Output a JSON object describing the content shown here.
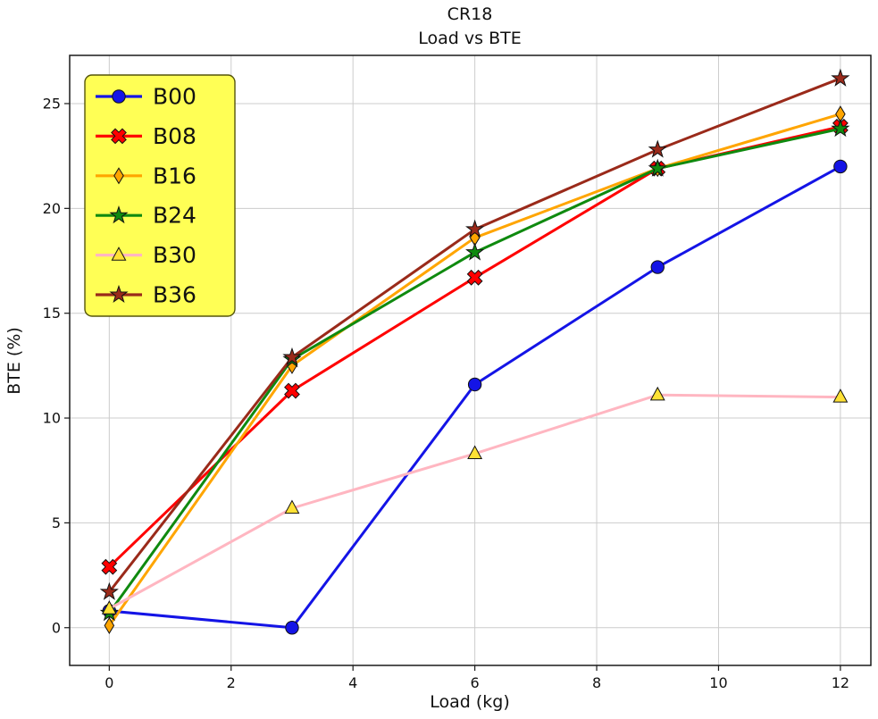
{
  "chart_data": {
    "type": "line",
    "title": "CR18",
    "subtitle": "Load vs BTE",
    "xlabel": "Load (kg)",
    "ylabel": "BTE (%)",
    "x": [
      0,
      3,
      6,
      9,
      12
    ],
    "x_ticks": [
      0,
      2,
      4,
      6,
      8,
      10,
      12
    ],
    "y_ticks": [
      0,
      5,
      10,
      15,
      20,
      25
    ],
    "xlim": [
      -0.65,
      12.5
    ],
    "ylim": [
      -1.8,
      27.3
    ],
    "grid": true,
    "grid_color": "#cccccc",
    "legend_position": "upper-left",
    "legend_bg": "#ffff55",
    "legend_border": "#55550a",
    "series": [
      {
        "name": "B00",
        "color": "#1414e6",
        "marker": "circle",
        "marker_fill": "#1414e6",
        "values": [
          0.8,
          0.0,
          11.6,
          17.2,
          22.0
        ]
      },
      {
        "name": "B08",
        "color": "#ff0000",
        "marker": "x",
        "marker_fill": "#ff0000",
        "values": [
          2.9,
          11.3,
          16.7,
          21.9,
          23.9
        ]
      },
      {
        "name": "B16",
        "color": "#ffa500",
        "marker": "diamond",
        "marker_fill": "#ffa500",
        "values": [
          0.1,
          12.5,
          18.6,
          21.9,
          24.5
        ]
      },
      {
        "name": "B24",
        "color": "#0f8a0f",
        "marker": "star",
        "marker_fill": "#0f8a0f",
        "values": [
          0.7,
          12.8,
          17.9,
          21.9,
          23.8
        ]
      },
      {
        "name": "B30",
        "color": "#ffb6c1",
        "marker": "triangle",
        "marker_fill": "#ffe135",
        "values": [
          0.9,
          5.7,
          8.3,
          11.1,
          11.0
        ]
      },
      {
        "name": "B36",
        "color": "#9a2a1a",
        "marker": "star",
        "marker_fill": "#9a2a1a",
        "values": [
          1.7,
          12.9,
          19.0,
          22.8,
          26.2
        ]
      }
    ]
  }
}
